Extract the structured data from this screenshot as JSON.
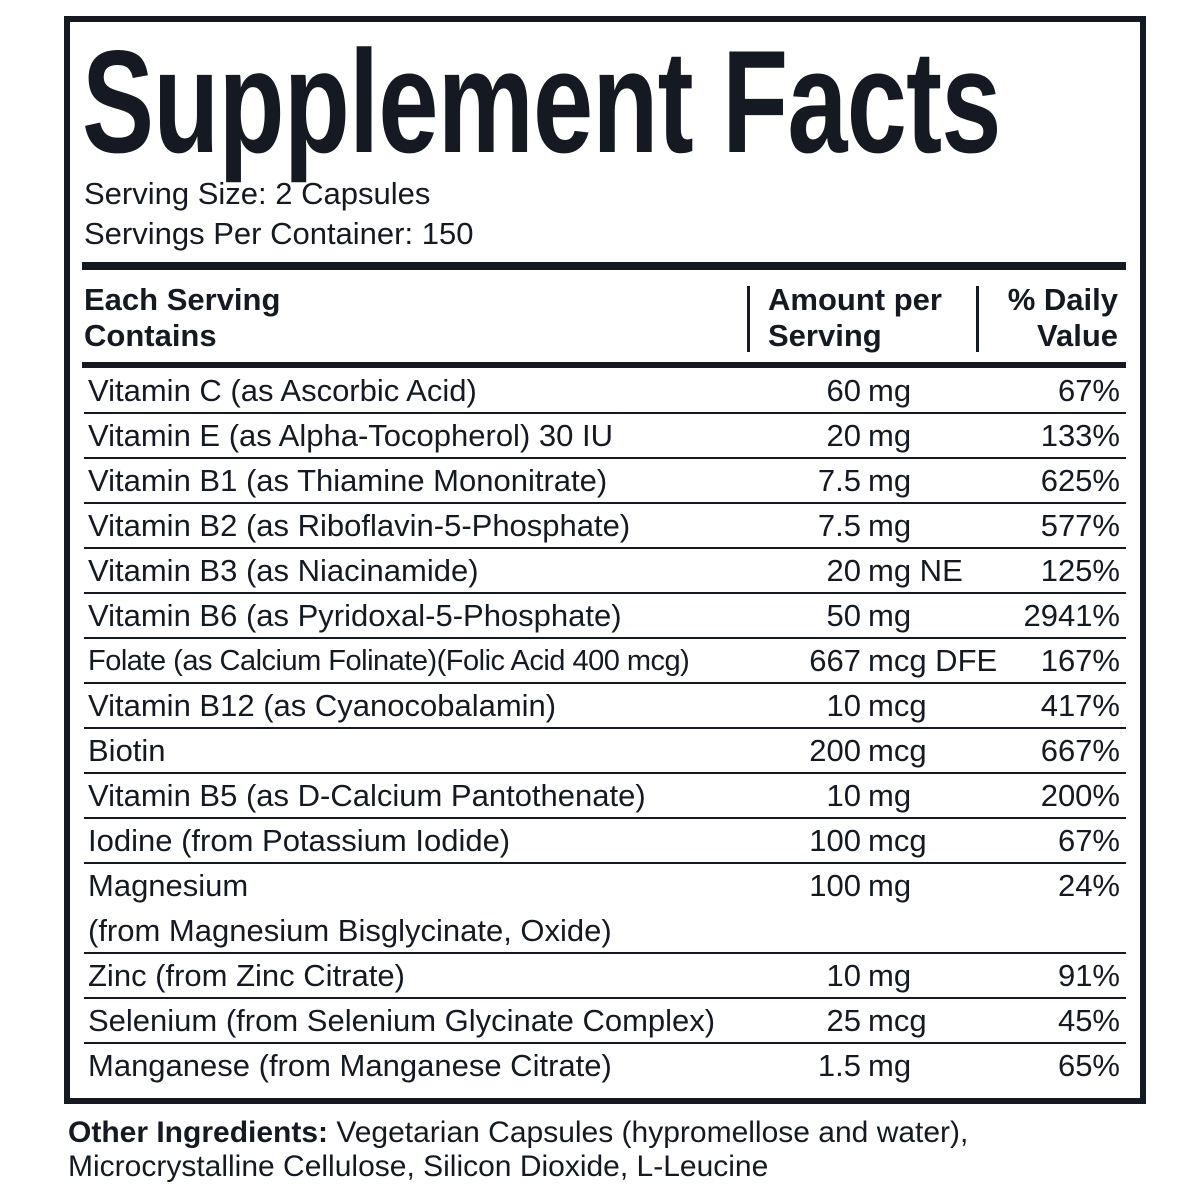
{
  "title": "Supplement Facts",
  "serving_size": "Serving Size: 2 Capsules",
  "servings_per_container": "Servings Per Container: 150",
  "headers": {
    "col1_line1": "Each Serving",
    "col1_line2": "Contains",
    "col2_line1": "Amount per",
    "col2_line2": "Serving",
    "col3_line1": "% Daily",
    "col3_line2": "Value"
  },
  "rows": [
    {
      "name": "Vitamin C (as Ascorbic Acid)",
      "num": "60",
      "unit": "mg",
      "dv": "67%"
    },
    {
      "name": "Vitamin E (as Alpha-Tocopherol) 30 IU",
      "num": "20",
      "unit": "mg",
      "dv": "133%"
    },
    {
      "name": "Vitamin B1 (as Thiamine Mononitrate)",
      "num": "7.5",
      "unit": "mg",
      "dv": "625%"
    },
    {
      "name": "Vitamin B2 (as Riboflavin-5-Phosphate)",
      "num": "7.5",
      "unit": "mg",
      "dv": "577%"
    },
    {
      "name": "Vitamin B3 (as Niacinamide)",
      "num": "20",
      "unit": "mg NE",
      "dv": "125%"
    },
    {
      "name": "Vitamin B6 (as Pyridoxal-5-Phosphate)",
      "num": "50",
      "unit": "mg",
      "dv": "2941%"
    },
    {
      "name": "Folate (as Calcium Folinate)(Folic Acid 400 mcg)",
      "num": "667",
      "unit": "mcg DFE",
      "dv": "167%"
    },
    {
      "name": "Vitamin B12 (as Cyanocobalamin)",
      "num": "10",
      "unit": "mcg",
      "dv": "417%"
    },
    {
      "name": "Biotin",
      "num": "200",
      "unit": "mcg",
      "dv": "667%"
    },
    {
      "name": "Vitamin B5 (as D-Calcium Pantothenate)",
      "num": "10",
      "unit": "mg",
      "dv": "200%"
    },
    {
      "name": "Iodine (from Potassium Iodide)",
      "num": "100",
      "unit": "mcg",
      "dv": "67%"
    },
    {
      "name": "Magnesium",
      "name2": "(from Magnesium Bisglycinate, Oxide)",
      "num": "100",
      "unit": "mg",
      "dv": "24%"
    },
    {
      "name": "Zinc (from Zinc Citrate)",
      "num": "10",
      "unit": "mg",
      "dv": "91%"
    },
    {
      "name": "Selenium (from Selenium Glycinate Complex)",
      "num": "25",
      "unit": "mcg",
      "dv": "45%"
    },
    {
      "name": "Manganese (from Manganese Citrate)",
      "num": "1.5",
      "unit": "mg",
      "dv": "65%"
    }
  ],
  "other_ingredients": {
    "label": "Other Ingredients:",
    "text": " Vegetarian Capsules (hypromellose and water), Microcrystalline Cellulose, Silicon Dioxide, L-Leucine"
  },
  "colors": {
    "ink": "#151a22",
    "background": "#ffffff"
  }
}
